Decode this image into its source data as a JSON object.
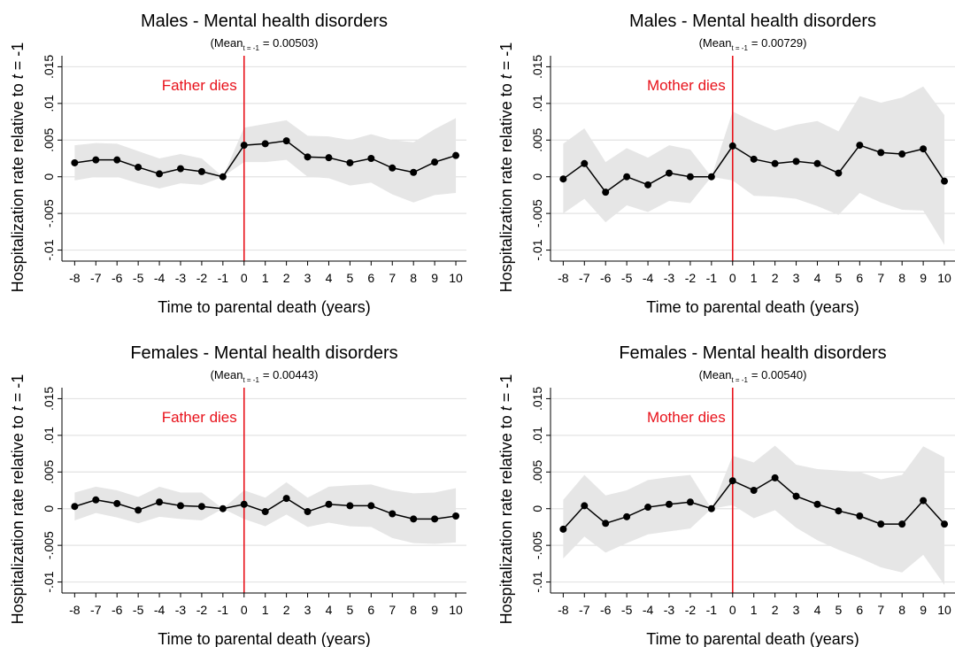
{
  "chart_data": [
    {
      "type": "line",
      "title": "Males - Mental health disorders",
      "subtitle": {
        "prefix": "(Mean",
        "subscript": "t = -1",
        "suffix": "= 0.00503)"
      },
      "ylabel": {
        "text": "Hospitalization rate relative to",
        "var": "t",
        "rest": "= -1"
      },
      "xlabel": "Time to parental death (years)",
      "annotation": "Father dies",
      "vline": 0,
      "x": [
        -8,
        -7,
        -6,
        -5,
        -4,
        -3,
        -2,
        -1,
        0,
        1,
        2,
        3,
        4,
        5,
        6,
        7,
        8,
        9,
        10
      ],
      "values": [
        0.0019,
        0.0023,
        0.0023,
        0.0013,
        0.0004,
        0.0011,
        0.0007,
        0,
        0.0043,
        0.0045,
        0.0049,
        0.0027,
        0.0026,
        0.0019,
        0.0025,
        0.0012,
        0.0006,
        0.002,
        0.0029
      ],
      "ci_upper": [
        0.0043,
        0.0046,
        0.0045,
        0.0035,
        0.0025,
        0.0031,
        0.0025,
        0,
        0.0067,
        0.0072,
        0.0077,
        0.0056,
        0.0055,
        0.005,
        0.0058,
        0.005,
        0.0047,
        0.0065,
        0.008
      ],
      "ci_lower": [
        -0.0005,
        0,
        0,
        -0.0009,
        -0.0016,
        -0.0009,
        -0.0011,
        0,
        0.002,
        0.002,
        0.0023,
        0,
        -0.0002,
        -0.0012,
        -0.0008,
        -0.0024,
        -0.0035,
        -0.0025,
        -0.0022
      ],
      "color": "#000000",
      "band_color": "#e6e6e6",
      "vline_color": "#e8121b",
      "xlim": [
        -8.6,
        10.5
      ],
      "xticks": [
        -8,
        -7,
        -6,
        -5,
        -4,
        -3,
        -2,
        -1,
        0,
        1,
        2,
        3,
        4,
        5,
        6,
        7,
        8,
        9,
        10
      ],
      "ylim": [
        -0.0115,
        0.0165
      ],
      "yticks": [
        {
          "value": 0.015,
          "label": ".015"
        },
        {
          "value": 0.01,
          "label": ".01"
        },
        {
          "value": 0.005,
          "label": ".005"
        },
        0,
        {
          "value": -0.005,
          "label": "-.005"
        },
        {
          "value": -0.01,
          "label": "-.01"
        }
      ],
      "grid": true
    },
    {
      "type": "line",
      "title": "Males - Mental health disorders",
      "subtitle": {
        "prefix": "(Mean",
        "subscript": "t = -1",
        "suffix": "= 0.00729)"
      },
      "ylabel": {
        "text": "Hospitalization rate relative to",
        "var": "t",
        "rest": "= -1"
      },
      "xlabel": "Time to parental death (years)",
      "annotation": "Mother dies",
      "vline": 0,
      "x": [
        -8,
        -7,
        -6,
        -5,
        -4,
        -3,
        -2,
        -1,
        0,
        1,
        2,
        3,
        4,
        5,
        6,
        7,
        8,
        9,
        10
      ],
      "values": [
        -0.0003,
        0.0018,
        -0.0021,
        0,
        -0.0011,
        0.0005,
        0,
        0,
        0.0042,
        0.0024,
        0.0018,
        0.0021,
        0.0018,
        0.0005,
        0.0043,
        0.0033,
        0.0031,
        0.0038,
        -0.0006
      ],
      "ci_upper": [
        0.0045,
        0.0066,
        0.002,
        0.0039,
        0.0026,
        0.0043,
        0.0037,
        0,
        0.0089,
        0.0075,
        0.0063,
        0.0071,
        0.0076,
        0.0062,
        0.011,
        0.0101,
        0.0108,
        0.0123,
        0.0084
      ],
      "ci_lower": [
        -0.005,
        -0.003,
        -0.0062,
        -0.0039,
        -0.0048,
        -0.0033,
        -0.0036,
        0,
        -0.0005,
        -0.0026,
        -0.0027,
        -0.003,
        -0.004,
        -0.0052,
        -0.0022,
        -0.0035,
        -0.0045,
        -0.0046,
        -0.0093
      ],
      "color": "#000000",
      "band_color": "#e6e6e6",
      "vline_color": "#e8121b",
      "xlim": [
        -8.6,
        10.5
      ],
      "xticks": [
        -8,
        -7,
        -6,
        -5,
        -4,
        -3,
        -2,
        -1,
        0,
        1,
        2,
        3,
        4,
        5,
        6,
        7,
        8,
        9,
        10
      ],
      "ylim": [
        -0.0115,
        0.0165
      ],
      "yticks": [
        {
          "value": 0.015,
          "label": ".015"
        },
        {
          "value": 0.01,
          "label": ".01"
        },
        {
          "value": 0.005,
          "label": ".005"
        },
        0,
        {
          "value": -0.005,
          "label": "-.005"
        },
        {
          "value": -0.01,
          "label": "-.01"
        }
      ],
      "grid": true
    },
    {
      "type": "line",
      "title": "Females - Mental health disorders",
      "subtitle": {
        "prefix": "(Mean",
        "subscript": "t = -1",
        "suffix": "= 0.00443)"
      },
      "ylabel": {
        "text": "Hospitalization rate relative to",
        "var": "t",
        "rest": "= -1"
      },
      "xlabel": "Time to parental death (years)",
      "annotation": "Father dies",
      "vline": 0,
      "x": [
        -8,
        -7,
        -6,
        -5,
        -4,
        -3,
        -2,
        -1,
        0,
        1,
        2,
        3,
        4,
        5,
        6,
        7,
        8,
        9,
        10
      ],
      "values": [
        0.0003,
        0.0012,
        0.0007,
        -0.0002,
        0.0009,
        0.0004,
        0.0003,
        0,
        0.0006,
        -0.0004,
        0.0014,
        -0.0004,
        0.0006,
        0.0004,
        0.0004,
        -0.0007,
        -0.0014,
        -0.0014,
        -0.001
      ],
      "ci_upper": [
        0.0022,
        0.003,
        0.0025,
        0.0016,
        0.003,
        0.0022,
        0.0022,
        0,
        0.0025,
        0.0015,
        0.0036,
        0.0015,
        0.003,
        0.0032,
        0.0033,
        0.0025,
        0.0021,
        0.0022,
        0.0028
      ],
      "ci_lower": [
        -0.0016,
        -0.0006,
        -0.0012,
        -0.002,
        -0.0011,
        -0.0014,
        -0.0016,
        0,
        -0.0014,
        -0.0024,
        -0.0008,
        -0.0025,
        -0.0019,
        -0.0024,
        -0.0025,
        -0.004,
        -0.0047,
        -0.0048,
        -0.0046
      ],
      "color": "#000000",
      "band_color": "#e6e6e6",
      "vline_color": "#e8121b",
      "xlim": [
        -8.6,
        10.5
      ],
      "xticks": [
        -8,
        -7,
        -6,
        -5,
        -4,
        -3,
        -2,
        -1,
        0,
        1,
        2,
        3,
        4,
        5,
        6,
        7,
        8,
        9,
        10
      ],
      "ylim": [
        -0.0115,
        0.0165
      ],
      "yticks": [
        {
          "value": 0.015,
          "label": ".015"
        },
        {
          "value": 0.01,
          "label": ".01"
        },
        {
          "value": 0.005,
          "label": ".005"
        },
        0,
        {
          "value": -0.005,
          "label": "-.005"
        },
        {
          "value": -0.01,
          "label": "-.01"
        }
      ],
      "grid": true
    },
    {
      "type": "line",
      "title": "Females - Mental health disorders",
      "subtitle": {
        "prefix": "(Mean",
        "subscript": "t = -1",
        "suffix": "= 0.00540)"
      },
      "ylabel": {
        "text": "Hospitalization rate relative to",
        "var": "t",
        "rest": "= -1"
      },
      "xlabel": "Time to parental death (years)",
      "annotation": "Mother dies",
      "vline": 0,
      "x": [
        -8,
        -7,
        -6,
        -5,
        -4,
        -3,
        -2,
        -1,
        0,
        1,
        2,
        3,
        4,
        5,
        6,
        7,
        8,
        9,
        10
      ],
      "values": [
        -0.0028,
        0.0004,
        -0.002,
        -0.0011,
        0.0002,
        0.0006,
        0.0009,
        0,
        0.0038,
        0.0025,
        0.0042,
        0.0017,
        0.0006,
        -0.0003,
        -0.001,
        -0.0021,
        -0.0021,
        0.0011,
        -0.0021
      ],
      "ci_upper": [
        0.0012,
        0.0046,
        0.0018,
        0.0025,
        0.0039,
        0.0043,
        0.0046,
        0,
        0.0072,
        0.0063,
        0.0086,
        0.006,
        0.0054,
        0.0052,
        0.005,
        0.004,
        0.0046,
        0.0085,
        0.007
      ],
      "ci_lower": [
        -0.0068,
        -0.0038,
        -0.006,
        -0.0047,
        -0.0035,
        -0.0031,
        -0.0027,
        0,
        0.0005,
        -0.0013,
        -0.0002,
        -0.0026,
        -0.0043,
        -0.0056,
        -0.0067,
        -0.008,
        -0.0087,
        -0.0063,
        -0.0104
      ],
      "color": "#000000",
      "band_color": "#e6e6e6",
      "vline_color": "#e8121b",
      "xlim": [
        -8.6,
        10.5
      ],
      "xticks": [
        -8,
        -7,
        -6,
        -5,
        -4,
        -3,
        -2,
        -1,
        0,
        1,
        2,
        3,
        4,
        5,
        6,
        7,
        8,
        9,
        10
      ],
      "ylim": [
        -0.0115,
        0.0165
      ],
      "yticks": [
        {
          "value": 0.015,
          "label": ".015"
        },
        {
          "value": 0.01,
          "label": ".01"
        },
        {
          "value": 0.005,
          "label": ".005"
        },
        0,
        {
          "value": -0.005,
          "label": "-.005"
        },
        {
          "value": -0.01,
          "label": "-.01"
        }
      ],
      "grid": true
    }
  ]
}
